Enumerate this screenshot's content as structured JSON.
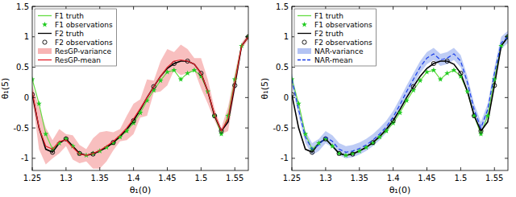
{
  "chart_data": [
    {
      "type": "line",
      "x_label": "θ₁(0)",
      "y_label": "θ₁(5)",
      "xlim": [
        1.25,
        1.57
      ],
      "ylim": [
        -1.2,
        1.5
      ],
      "xticks": [
        1.25,
        1.3,
        1.35,
        1.4,
        1.45,
        1.5,
        1.55
      ],
      "yticks": [
        -1,
        -0.5,
        0,
        0.5,
        1,
        1.5
      ],
      "grid": false,
      "legend": "upper left",
      "series": [
        {
          "name": "F1 truth",
          "type": "line",
          "line_style": "solid",
          "color": "#66dd44",
          "x": [
            1.25,
            1.26,
            1.27,
            1.28,
            1.29,
            1.3,
            1.31,
            1.32,
            1.33,
            1.34,
            1.35,
            1.36,
            1.37,
            1.38,
            1.39,
            1.4,
            1.41,
            1.42,
            1.43,
            1.44,
            1.45,
            1.46,
            1.47,
            1.48,
            1.49,
            1.5,
            1.51,
            1.52,
            1.53,
            1.54,
            1.55,
            1.56,
            1.57
          ],
          "values": [
            0.3,
            -0.1,
            -0.6,
            -0.85,
            -0.75,
            -0.68,
            -0.8,
            -0.92,
            -0.95,
            -0.92,
            -0.88,
            -0.82,
            -0.75,
            -0.65,
            -0.55,
            -0.42,
            -0.25,
            -0.05,
            0.12,
            0.28,
            0.42,
            0.45,
            0.3,
            0.4,
            0.45,
            0.35,
            0.1,
            -0.3,
            -0.6,
            -0.3,
            0.3,
            0.85,
            1.0
          ]
        },
        {
          "name": "F1 observations",
          "type": "scatter",
          "marker": "star",
          "color": "#22cc22",
          "x": [
            1.25,
            1.26,
            1.27,
            1.28,
            1.29,
            1.3,
            1.31,
            1.32,
            1.33,
            1.34,
            1.35,
            1.36,
            1.37,
            1.38,
            1.39,
            1.4,
            1.41,
            1.42,
            1.43,
            1.44,
            1.45,
            1.46,
            1.47,
            1.48,
            1.49,
            1.5,
            1.51,
            1.52,
            1.53,
            1.54,
            1.55,
            1.56,
            1.57
          ],
          "values": [
            0.3,
            -0.1,
            -0.6,
            -0.85,
            -0.75,
            -0.68,
            -0.8,
            -0.92,
            -0.95,
            -0.92,
            -0.88,
            -0.82,
            -0.75,
            -0.65,
            -0.55,
            -0.42,
            -0.25,
            -0.05,
            0.12,
            0.28,
            0.42,
            0.45,
            0.3,
            0.4,
            0.45,
            0.35,
            0.1,
            -0.3,
            -0.6,
            -0.3,
            0.3,
            0.85,
            1.0
          ]
        },
        {
          "name": "F2 truth",
          "type": "line",
          "line_style": "solid",
          "color": "#000000",
          "x": [
            1.25,
            1.26,
            1.27,
            1.28,
            1.29,
            1.3,
            1.31,
            1.32,
            1.33,
            1.34,
            1.35,
            1.36,
            1.37,
            1.38,
            1.39,
            1.4,
            1.41,
            1.42,
            1.43,
            1.44,
            1.45,
            1.46,
            1.47,
            1.48,
            1.49,
            1.5,
            1.51,
            1.52,
            1.53,
            1.54,
            1.55,
            1.56,
            1.57
          ],
          "values": [
            0.05,
            -0.5,
            -0.85,
            -0.9,
            -0.75,
            -0.68,
            -0.8,
            -0.92,
            -0.95,
            -0.93,
            -0.88,
            -0.82,
            -0.74,
            -0.64,
            -0.52,
            -0.38,
            -0.2,
            0.0,
            0.18,
            0.35,
            0.48,
            0.56,
            0.6,
            0.6,
            0.55,
            0.4,
            0.1,
            -0.3,
            -0.55,
            -0.4,
            0.2,
            0.85,
            1.0
          ]
        },
        {
          "name": "F2 observations",
          "type": "scatter",
          "marker": "circle",
          "color": "#000000",
          "x": [
            1.25,
            1.28,
            1.3,
            1.32,
            1.34,
            1.37,
            1.4,
            1.43,
            1.46,
            1.48,
            1.5,
            1.52,
            1.53,
            1.55,
            1.57
          ],
          "values": [
            0.05,
            -0.9,
            -0.68,
            -0.92,
            -0.93,
            -0.74,
            -0.38,
            0.18,
            0.56,
            0.6,
            0.4,
            -0.3,
            -0.55,
            0.2,
            1.0
          ]
        },
        {
          "name": "ResGP-variance",
          "type": "band",
          "color": "#f7b4b4",
          "x": [
            1.25,
            1.26,
            1.27,
            1.28,
            1.29,
            1.3,
            1.31,
            1.32,
            1.33,
            1.34,
            1.35,
            1.36,
            1.37,
            1.38,
            1.39,
            1.4,
            1.41,
            1.42,
            1.43,
            1.44,
            1.45,
            1.46,
            1.47,
            1.48,
            1.49,
            1.5,
            1.51,
            1.52,
            1.53,
            1.54,
            1.55,
            1.56,
            1.57
          ],
          "lower": [
            0.0,
            -0.85,
            -1.1,
            -1.0,
            -0.92,
            -0.8,
            -1.02,
            -1.08,
            -1.05,
            -1.17,
            -1.17,
            -1.05,
            -0.87,
            -0.72,
            -0.7,
            -0.6,
            -0.33,
            -0.3,
            0.08,
            0.1,
            0.2,
            0.45,
            0.37,
            0.4,
            0.45,
            0.15,
            -0.1,
            -0.38,
            -0.6,
            -0.55,
            0.1,
            0.8,
            0.95
          ],
          "upper": [
            0.2,
            -0.15,
            -0.5,
            -0.7,
            -0.52,
            -0.6,
            -0.62,
            -0.78,
            -0.85,
            -0.67,
            -0.57,
            -0.55,
            -0.57,
            -0.52,
            -0.3,
            -0.1,
            -0.03,
            0.3,
            0.28,
            0.6,
            0.8,
            0.75,
            0.87,
            0.8,
            0.65,
            0.65,
            0.3,
            -0.18,
            -0.5,
            -0.15,
            0.4,
            0.9,
            1.05
          ]
        },
        {
          "name": "ResGP-mean",
          "type": "line",
          "line_style": "solid",
          "color": "#e3202a",
          "x": [
            1.25,
            1.26,
            1.27,
            1.28,
            1.29,
            1.3,
            1.31,
            1.32,
            1.33,
            1.34,
            1.35,
            1.36,
            1.37,
            1.38,
            1.39,
            1.4,
            1.41,
            1.42,
            1.43,
            1.44,
            1.45,
            1.46,
            1.47,
            1.48,
            1.49,
            1.5,
            1.51,
            1.52,
            1.53,
            1.54,
            1.55,
            1.56,
            1.57
          ],
          "values": [
            0.1,
            -0.5,
            -0.8,
            -0.85,
            -0.72,
            -0.7,
            -0.82,
            -0.93,
            -0.95,
            -0.92,
            -0.87,
            -0.8,
            -0.72,
            -0.62,
            -0.5,
            -0.35,
            -0.18,
            0.0,
            0.18,
            0.35,
            0.5,
            0.6,
            0.62,
            0.6,
            0.55,
            0.4,
            0.1,
            -0.28,
            -0.55,
            -0.35,
            0.25,
            0.85,
            1.0
          ]
        }
      ]
    },
    {
      "type": "line",
      "x_label": "θ₁(0)",
      "y_label": "θ₁(5)",
      "xlim": [
        1.25,
        1.57
      ],
      "ylim": [
        -1.2,
        1.5
      ],
      "xticks": [
        1.25,
        1.3,
        1.35,
        1.4,
        1.45,
        1.5,
        1.55
      ],
      "yticks": [
        -1,
        -0.5,
        0,
        0.5,
        1,
        1.5
      ],
      "grid": false,
      "legend": "upper left",
      "series": [
        {
          "name": "F1 truth",
          "type": "line",
          "line_style": "solid",
          "color": "#66dd44",
          "x": [
            1.25,
            1.26,
            1.27,
            1.28,
            1.29,
            1.3,
            1.31,
            1.32,
            1.33,
            1.34,
            1.35,
            1.36,
            1.37,
            1.38,
            1.39,
            1.4,
            1.41,
            1.42,
            1.43,
            1.44,
            1.45,
            1.46,
            1.47,
            1.48,
            1.49,
            1.5,
            1.51,
            1.52,
            1.53,
            1.54,
            1.55,
            1.56,
            1.57
          ],
          "values": [
            0.3,
            -0.1,
            -0.6,
            -0.85,
            -0.75,
            -0.68,
            -0.8,
            -0.92,
            -0.95,
            -0.92,
            -0.88,
            -0.82,
            -0.75,
            -0.65,
            -0.55,
            -0.42,
            -0.25,
            -0.05,
            0.12,
            0.28,
            0.42,
            0.45,
            0.3,
            0.4,
            0.45,
            0.35,
            0.1,
            -0.3,
            -0.6,
            -0.3,
            0.3,
            0.85,
            1.0
          ]
        },
        {
          "name": "F1 observations",
          "type": "scatter",
          "marker": "star",
          "color": "#22cc22",
          "x": [
            1.25,
            1.26,
            1.27,
            1.28,
            1.29,
            1.3,
            1.31,
            1.32,
            1.33,
            1.34,
            1.35,
            1.36,
            1.37,
            1.38,
            1.39,
            1.4,
            1.41,
            1.42,
            1.43,
            1.44,
            1.45,
            1.46,
            1.47,
            1.48,
            1.49,
            1.5,
            1.51,
            1.52,
            1.53,
            1.54,
            1.55,
            1.56,
            1.57
          ],
          "values": [
            0.3,
            -0.1,
            -0.6,
            -0.85,
            -0.75,
            -0.68,
            -0.8,
            -0.92,
            -0.95,
            -0.92,
            -0.88,
            -0.82,
            -0.75,
            -0.65,
            -0.55,
            -0.42,
            -0.25,
            -0.05,
            0.12,
            0.28,
            0.42,
            0.45,
            0.3,
            0.4,
            0.45,
            0.35,
            0.1,
            -0.3,
            -0.6,
            -0.3,
            0.3,
            0.85,
            1.0
          ]
        },
        {
          "name": "F2 truth",
          "type": "line",
          "line_style": "solid",
          "color": "#000000",
          "x": [
            1.25,
            1.26,
            1.27,
            1.28,
            1.29,
            1.3,
            1.31,
            1.32,
            1.33,
            1.34,
            1.35,
            1.36,
            1.37,
            1.38,
            1.39,
            1.4,
            1.41,
            1.42,
            1.43,
            1.44,
            1.45,
            1.46,
            1.47,
            1.48,
            1.49,
            1.5,
            1.51,
            1.52,
            1.53,
            1.54,
            1.55,
            1.56,
            1.57
          ],
          "values": [
            0.05,
            -0.5,
            -0.85,
            -0.9,
            -0.75,
            -0.68,
            -0.8,
            -0.92,
            -0.95,
            -0.93,
            -0.88,
            -0.82,
            -0.74,
            -0.64,
            -0.52,
            -0.38,
            -0.2,
            0.0,
            0.18,
            0.35,
            0.48,
            0.56,
            0.6,
            0.6,
            0.55,
            0.4,
            0.1,
            -0.3,
            -0.55,
            -0.4,
            0.2,
            0.85,
            1.0
          ]
        },
        {
          "name": "F2 observations",
          "type": "scatter",
          "marker": "circle",
          "color": "#000000",
          "x": [
            1.25,
            1.28,
            1.3,
            1.32,
            1.34,
            1.37,
            1.4,
            1.43,
            1.46,
            1.48,
            1.5,
            1.52,
            1.53,
            1.55,
            1.57
          ],
          "values": [
            0.05,
            -0.9,
            -0.68,
            -0.92,
            -0.93,
            -0.74,
            -0.38,
            0.18,
            0.56,
            0.6,
            0.4,
            -0.3,
            -0.55,
            0.2,
            1.0
          ]
        },
        {
          "name": "NAR-variance",
          "type": "band",
          "color": "#b3c3f3",
          "x": [
            1.25,
            1.26,
            1.27,
            1.28,
            1.29,
            1.3,
            1.31,
            1.32,
            1.33,
            1.34,
            1.35,
            1.36,
            1.37,
            1.38,
            1.39,
            1.4,
            1.41,
            1.42,
            1.43,
            1.44,
            1.45,
            1.46,
            1.47,
            1.48,
            1.49,
            1.5,
            1.51,
            1.52,
            1.53,
            1.54,
            1.55,
            1.56,
            1.57
          ],
          "lower": [
            0.2,
            -0.3,
            -0.75,
            -0.95,
            -0.88,
            -0.75,
            -0.82,
            -0.95,
            -1.0,
            -0.98,
            -0.94,
            -0.88,
            -0.8,
            -0.7,
            -0.58,
            -0.42,
            -0.22,
            0.0,
            0.2,
            0.4,
            0.55,
            0.62,
            0.52,
            0.55,
            0.62,
            0.5,
            0.15,
            -0.3,
            -0.6,
            -0.3,
            0.3,
            0.8,
            0.9
          ],
          "upper": [
            0.4,
            -0.1,
            -0.55,
            -0.75,
            -0.68,
            -0.55,
            -0.62,
            -0.75,
            -0.8,
            -0.78,
            -0.74,
            -0.68,
            -0.6,
            -0.5,
            -0.38,
            -0.22,
            -0.02,
            0.2,
            0.4,
            0.6,
            0.75,
            0.82,
            0.72,
            0.75,
            0.82,
            0.7,
            0.35,
            -0.1,
            -0.4,
            -0.1,
            0.5,
            1.0,
            1.1
          ]
        },
        {
          "name": "NAR-mean",
          "type": "line",
          "line_style": "dashed",
          "color": "#1a3ee8",
          "x": [
            1.25,
            1.26,
            1.27,
            1.28,
            1.29,
            1.3,
            1.31,
            1.32,
            1.33,
            1.34,
            1.35,
            1.36,
            1.37,
            1.38,
            1.39,
            1.4,
            1.41,
            1.42,
            1.43,
            1.44,
            1.45,
            1.46,
            1.47,
            1.48,
            1.49,
            1.5,
            1.51,
            1.52,
            1.53,
            1.54,
            1.55,
            1.56,
            1.57
          ],
          "values": [
            0.3,
            -0.2,
            -0.65,
            -0.85,
            -0.78,
            -0.65,
            -0.72,
            -0.85,
            -0.9,
            -0.88,
            -0.84,
            -0.78,
            -0.7,
            -0.6,
            -0.48,
            -0.32,
            -0.12,
            0.1,
            0.3,
            0.5,
            0.65,
            0.72,
            0.62,
            0.65,
            0.72,
            0.6,
            0.25,
            -0.2,
            -0.5,
            -0.2,
            0.4,
            0.9,
            1.0
          ]
        }
      ]
    }
  ]
}
